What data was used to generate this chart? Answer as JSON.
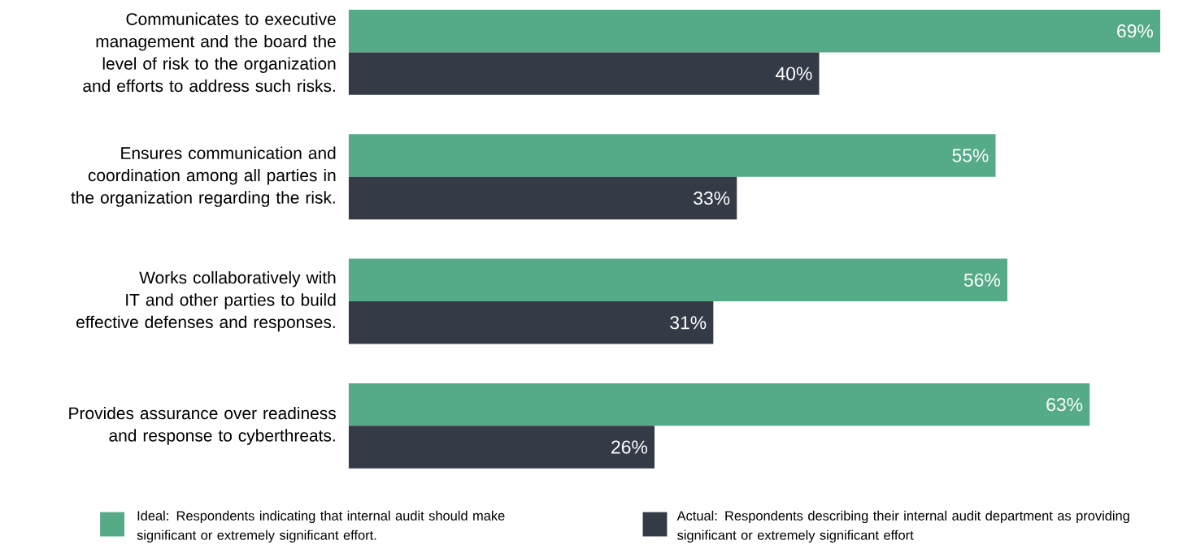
{
  "chart_data": {
    "type": "bar",
    "orientation": "horizontal",
    "legend": "bottom",
    "categories": [
      "Communicates to executive management and the board the level of risk to the organization and efforts to address such risks.",
      "Ensures communication and coordination among all parties in the organization regarding the risk.",
      "Works collaboratively with IT and other parties to build effective defenses and responses.",
      "Provides assurance over readiness and response to cyberthreats."
    ],
    "series": [
      {
        "name": "Ideal: Respondents indicating that internal audit should make significant or extremely significant effort.",
        "color": "#55ab87",
        "values": [
          69,
          55,
          56,
          63
        ],
        "value_labels": [
          "69%",
          "55%",
          "56%",
          "63%"
        ]
      },
      {
        "name": "Actual: Respondents describing their internal audit department as providing significant or extremely significant effort",
        "color": "#343a46",
        "values": [
          40,
          33,
          31,
          26
        ],
        "value_labels": [
          "40%",
          "33%",
          "31%",
          "26%"
        ]
      }
    ]
  }
}
